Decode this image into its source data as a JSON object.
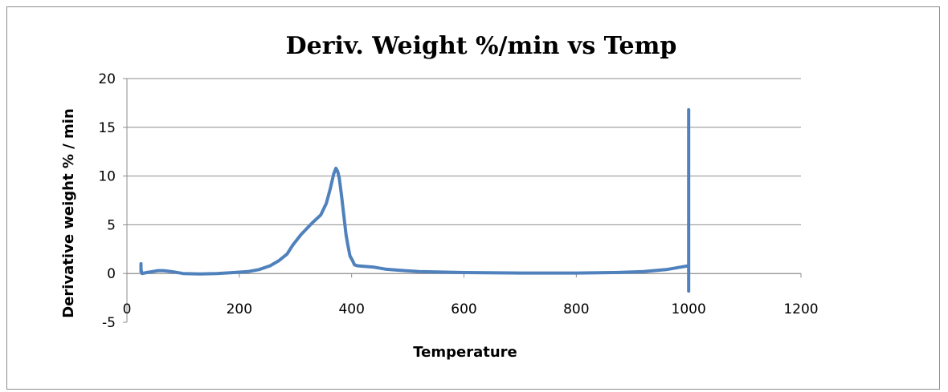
{
  "chart_data": {
    "type": "line",
    "title": "Deriv. Weight %/min vs Temp",
    "xlabel": "Temperature",
    "ylabel": "Derivative weight % / min",
    "xlim": [
      0,
      1200
    ],
    "ylim": [
      -5,
      20
    ],
    "x_ticks": [
      "0",
      "200",
      "400",
      "600",
      "800",
      "1000",
      "1200"
    ],
    "y_ticks": [
      "-5",
      "0",
      "5",
      "10",
      "15",
      "20"
    ],
    "grid": "horizontal",
    "legend": "none",
    "series_color": "#4f81bd",
    "series": [
      {
        "x": [
          25,
          25,
          25,
          27,
          35,
          45,
          55,
          65,
          80,
          100,
          130,
          160,
          190,
          215,
          235,
          255,
          270,
          285,
          295,
          310,
          330,
          345,
          355,
          362,
          368,
          372,
          375,
          378,
          382,
          386,
          390,
          393,
          397,
          401,
          405,
          410,
          420,
          440,
          460,
          480,
          520,
          600,
          700,
          800,
          870,
          920,
          960,
          990,
          1000,
          1000,
          1000,
          1000
        ],
        "y": [
          0.2,
          1.0,
          0.4,
          0.0,
          0.1,
          0.2,
          0.3,
          0.3,
          0.2,
          0.0,
          -0.05,
          0.0,
          0.1,
          0.2,
          0.4,
          0.8,
          1.3,
          2.0,
          2.9,
          4.0,
          5.2,
          6.0,
          7.2,
          8.7,
          10.2,
          10.8,
          10.5,
          9.8,
          8.0,
          6.0,
          4.0,
          3.0,
          1.8,
          1.4,
          0.9,
          0.8,
          0.75,
          0.65,
          0.45,
          0.35,
          0.2,
          0.1,
          0.05,
          0.05,
          0.1,
          0.2,
          0.4,
          0.7,
          0.8,
          16.8,
          -1.8,
          0.8
        ]
      }
    ]
  }
}
